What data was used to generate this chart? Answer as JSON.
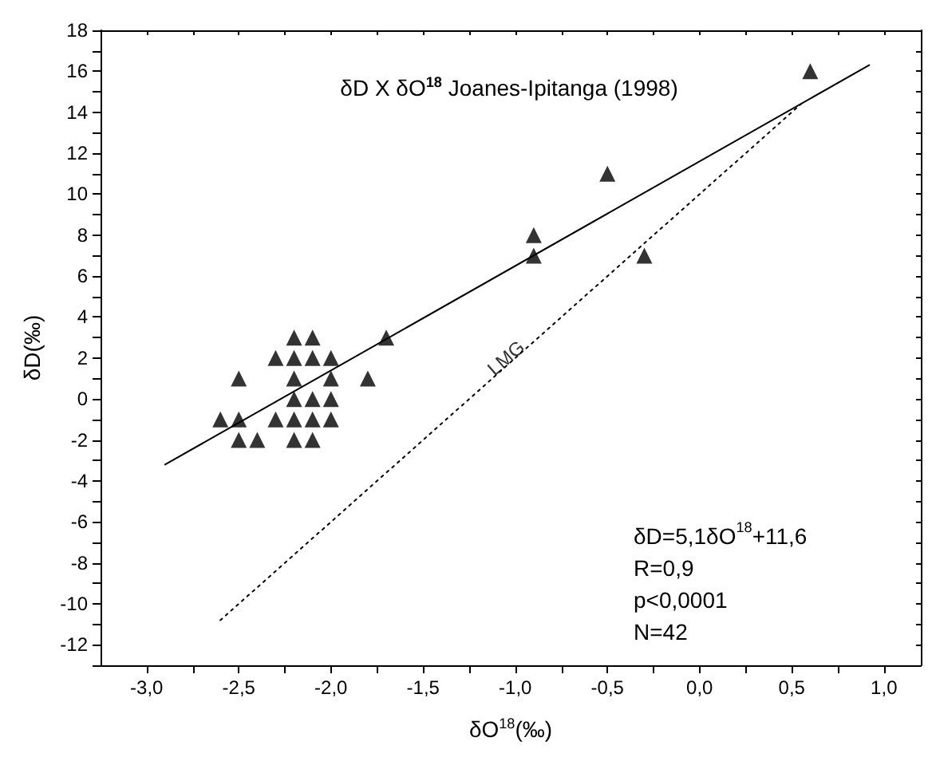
{
  "chart_data": {
    "type": "scatter",
    "title": "δD X δO$^{18}$ Joanes-Ipitanga (1998)",
    "xlabel": "δO$^{18}$(‰)",
    "ylabel": "δD(‰)",
    "annotations": [
      {
        "text": "LMG",
        "x": -1.05,
        "y": 2.0
      },
      "δD=5,1δO$^{18}$+11,6",
      "R=0,9",
      "p<0,0001",
      "N=42"
    ],
    "series": [
      {
        "color": "#000000",
        "marker": "triangle",
        "x": [
          -2.6,
          -2.5,
          -2.5,
          -2.5,
          -2.4,
          -2.3,
          -2.3,
          -2.2,
          -2.2,
          -2.2,
          -2.2,
          -2.2,
          -2.2,
          -2.1,
          -2.1,
          -2.1,
          -2.1,
          -2.1,
          -2.0,
          -2.0,
          -2.0,
          -2.0,
          -1.8,
          -1.7,
          -0.9,
          -0.9,
          -0.5,
          -0.3,
          0.6
        ],
        "values": [
          -1,
          1,
          -1,
          -2,
          -2,
          2,
          -1,
          3,
          2,
          1,
          0,
          -1,
          -2,
          3,
          2,
          0,
          -1,
          -2,
          2,
          1,
          0,
          -1,
          1,
          3,
          8,
          7,
          11,
          7,
          16
        ]
      },
      {
        "type": "line",
        "color": "#000000",
        "marker": "none",
        "line_style": "solid",
        "x": [
          -2.9,
          0.92
        ],
        "values": [
          -3.2,
          16.3
        ]
      },
      {
        "type": "line",
        "color": "#000000",
        "marker": "none",
        "line_style": "dotted",
        "x": [
          -2.6,
          0.55
        ],
        "values": [
          -10.8,
          14.4
        ]
      }
    ],
    "xlim": [
      -3.25,
      1.2
    ],
    "ylim": [
      -13,
      18
    ],
    "xticks": [
      {
        "value": -3.0,
        "label": "-3,0"
      },
      {
        "value": -2.75,
        "label": null
      },
      {
        "value": -2.5,
        "label": "-2,5"
      },
      {
        "value": -2.25,
        "label": null
      },
      {
        "value": -2.0,
        "label": "-2,0"
      },
      {
        "value": -1.75,
        "label": null
      },
      {
        "value": -1.5,
        "label": "-1,5"
      },
      {
        "value": -1.25,
        "label": null
      },
      {
        "value": -1.0,
        "label": "-1,0"
      },
      {
        "value": -0.75,
        "label": null
      },
      {
        "value": -0.5,
        "label": "-0,5"
      },
      {
        "value": -0.25,
        "label": null
      },
      {
        "value": 0.0,
        "label": "0,0"
      },
      {
        "value": 0.25,
        "label": null
      },
      {
        "value": 0.5,
        "label": "0,5"
      },
      {
        "value": 0.75,
        "label": null
      },
      {
        "value": 1.0,
        "label": "1,0"
      }
    ],
    "yticks": [
      {
        "value": -13,
        "label": null
      },
      -12,
      {
        "value": -11,
        "label": null
      },
      -10,
      {
        "value": -9,
        "label": null
      },
      -8,
      {
        "value": -7,
        "label": null
      },
      -6,
      {
        "value": -5,
        "label": null
      },
      -4,
      {
        "value": -3,
        "label": null
      },
      -2,
      {
        "value": -1,
        "label": null
      },
      0,
      {
        "value": 1,
        "label": null
      },
      2,
      {
        "value": 3,
        "label": null
      },
      4,
      {
        "value": 5,
        "label": null
      },
      6,
      {
        "value": 7,
        "label": null
      },
      8,
      {
        "value": 9,
        "label": null
      },
      10,
      {
        "value": 11,
        "label": null
      },
      12,
      {
        "value": 13,
        "label": null
      },
      14,
      {
        "value": 15,
        "label": null
      },
      16,
      {
        "value": 17,
        "label": null
      },
      18
    ],
    "grid": false
  }
}
